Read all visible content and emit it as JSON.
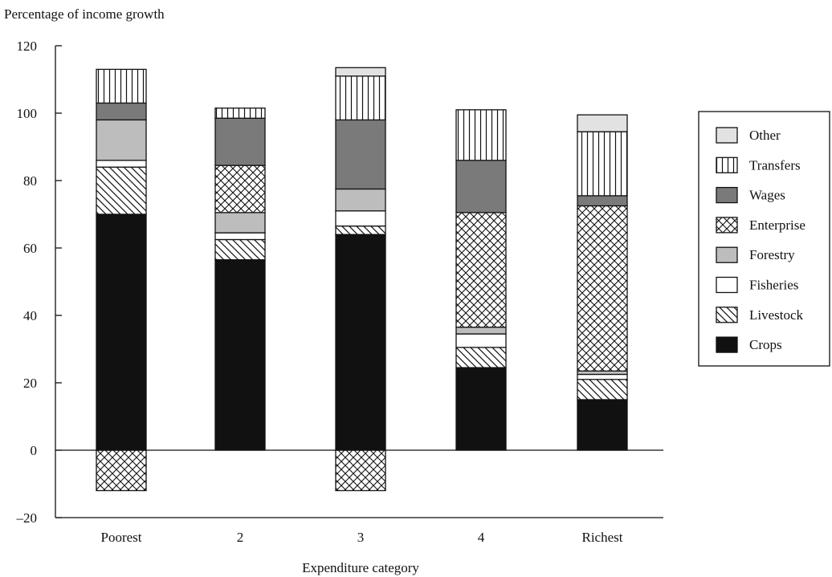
{
  "chart_data": {
    "type": "bar",
    "stacked": true,
    "title": "",
    "ylabel": "Percentage of income growth",
    "xlabel": "Expenditure category",
    "ylim": [
      -20,
      120
    ],
    "yticks": [
      120,
      100,
      80,
      60,
      40,
      20,
      0,
      -20
    ],
    "ytick_labels": [
      "120",
      "100",
      "80",
      "60",
      "40",
      "20",
      "0",
      "–20"
    ],
    "grid": false,
    "legend_position": "right",
    "categories": [
      "Poorest",
      "2",
      "3",
      "4",
      "Richest"
    ],
    "series": [
      {
        "name": "Crops",
        "pattern": "solid-black",
        "values": [
          70,
          56.5,
          64,
          24.5,
          15
        ]
      },
      {
        "name": "Livestock",
        "pattern": "diagonal-hatch",
        "values": [
          14,
          6,
          2.5,
          6,
          6
        ]
      },
      {
        "name": "Fisheries",
        "pattern": "white",
        "values": [
          2,
          2,
          4.5,
          4,
          1.5
        ]
      },
      {
        "name": "Forestry",
        "pattern": "light-gray",
        "values": [
          12,
          6,
          6.5,
          2,
          1
        ]
      },
      {
        "name": "Enterprise",
        "pattern": "crosshatch",
        "values": [
          -12,
          14,
          -12,
          34,
          49
        ]
      },
      {
        "name": "Wages",
        "pattern": "dark-gray",
        "values": [
          5,
          14,
          20.5,
          15.5,
          3
        ]
      },
      {
        "name": "Transfers",
        "pattern": "vertical-lines",
        "values": [
          10,
          3,
          13,
          15,
          19
        ]
      },
      {
        "name": "Other",
        "pattern": "very-light-gray",
        "values": [
          0,
          0,
          2.5,
          0,
          5
        ]
      }
    ],
    "legend_order": [
      "Other",
      "Transfers",
      "Wages",
      "Enterprise",
      "Forestry",
      "Fisheries",
      "Livestock",
      "Crops"
    ]
  }
}
